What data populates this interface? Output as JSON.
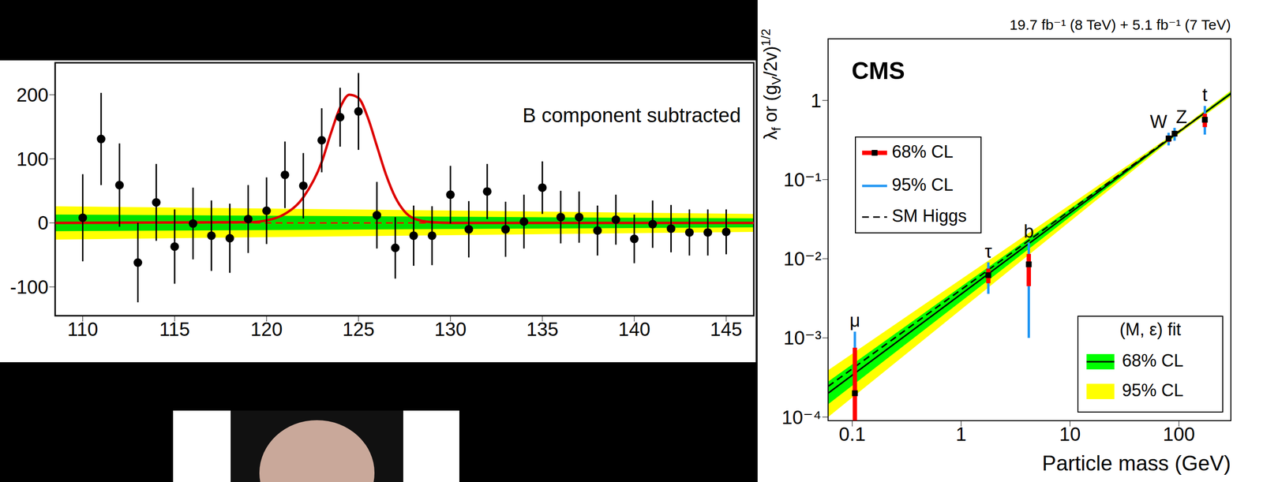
{
  "chart_data": [
    {
      "type": "scatter",
      "annotation": "B component subtracted",
      "xlim": [
        108.5,
        146.5
      ],
      "xticks": [
        110,
        115,
        120,
        125,
        130,
        135,
        140,
        145
      ],
      "ylim": [
        -145,
        250
      ],
      "yticks": [
        -100,
        0,
        100,
        200
      ],
      "color": "#000000",
      "x": [
        110,
        111,
        112,
        113,
        114,
        115,
        116,
        117,
        118,
        119,
        120,
        121,
        122,
        123,
        124,
        125,
        126,
        127,
        128,
        129,
        130,
        131,
        132,
        133,
        134,
        135,
        136,
        137,
        138,
        139,
        140,
        141,
        142,
        143,
        144,
        145
      ],
      "values": [
        8,
        131,
        59,
        -62,
        32,
        -37,
        -1,
        -20,
        -24,
        6,
        19,
        75,
        58,
        129,
        165,
        174,
        12,
        -39,
        -20,
        -20,
        44,
        -10,
        49,
        -10,
        2,
        55,
        9,
        9,
        -12,
        5,
        -25,
        -2,
        -9,
        -15,
        -15,
        -14
      ],
      "errors": [
        68,
        72,
        65,
        62,
        60,
        58,
        56,
        55,
        54,
        53,
        52,
        52,
        51,
        50,
        46,
        60,
        52,
        48,
        47,
        46,
        45,
        44,
        43,
        43,
        42,
        41,
        41,
        40,
        39,
        39,
        38,
        37,
        37,
        36,
        36,
        35
      ],
      "fit": {
        "color": "#dd0000",
        "x": [
          108.5,
          119,
          120,
          121,
          122,
          123,
          123.5,
          124,
          124.5,
          125,
          125.5,
          126,
          126.5,
          127,
          127.5,
          128,
          129,
          130,
          146.5
        ],
        "values": [
          0,
          1,
          4,
          14,
          40,
          95,
          140,
          180,
          200,
          195,
          165,
          120,
          75,
          40,
          18,
          7,
          1,
          0,
          0
        ]
      },
      "bands": [
        {
          "color": "#ffff00",
          "x": [
            108.5,
            146.5
          ],
          "lo": [
            -26,
            -14
          ],
          "hi": [
            26,
            14
          ]
        },
        {
          "color": "#00e000",
          "x": [
            108.5,
            146.5
          ],
          "lo": [
            -13,
            -7
          ],
          "hi": [
            13,
            7
          ]
        }
      ],
      "baseline": {
        "color": "#ff0000",
        "line_style": "dashed",
        "x": [
          108.5,
          146.5
        ],
        "values": [
          0,
          0
        ]
      }
    },
    {
      "type": "scatter",
      "title": "CMS",
      "subtitle": "19.7 fb⁻¹ (8 TeV) + 5.1 fb⁻¹ (7 TeV)",
      "xlabel": "Particle mass (GeV)",
      "ylabel": [
        "λ",
        "f",
        " or (g",
        "V",
        "/2v)",
        "1/2"
      ],
      "log": true,
      "xlim": [
        0.06,
        300
      ],
      "xticks": [
        0.1,
        1,
        10,
        100
      ],
      "ylim": [
        9e-05,
        6
      ],
      "yticks": [
        {
          "value": 0.0001,
          "label": "10⁻⁴"
        },
        {
          "value": 0.001,
          "label": "10⁻³"
        },
        {
          "value": 0.01,
          "label": "10⁻²"
        },
        {
          "value": 0.1,
          "label": "10⁻¹"
        },
        1
      ],
      "legend": "upper left",
      "points": [
        {
          "name": "μ",
          "x": 0.1057,
          "value": 0.0002,
          "intervals": {
            "68% CL": [
              5e-05,
              0.00075
            ],
            "95% CL": [
              5e-05,
              0.0012
            ]
          }
        },
        {
          "name": "τ",
          "x": 1.777,
          "value": 0.0062,
          "intervals": {
            "68% CL": [
              0.0049,
              0.0075
            ],
            "95% CL": [
              0.0036,
              0.009
            ]
          }
        },
        {
          "name": "b",
          "x": 4.18,
          "value": 0.0085,
          "intervals": {
            "68% CL": [
              0.0045,
              0.0115
            ],
            "95% CL": [
              0.001,
              0.016
            ]
          }
        },
        {
          "name": "W",
          "x": 80.4,
          "value": 0.33,
          "intervals": {
            "68% CL": [
              0.3,
              0.36
            ],
            "95% CL": [
              0.27,
              0.39
            ]
          }
        },
        {
          "name": "Z",
          "x": 91.2,
          "value": 0.38,
          "intervals": {
            "68% CL": [
              0.35,
              0.41
            ],
            "95% CL": [
              0.31,
              0.45
            ]
          }
        },
        {
          "name": "t",
          "x": 173,
          "value": 0.57,
          "intervals": {
            "68% CL": [
              0.46,
              0.68
            ],
            "95% CL": [
              0.37,
              0.85
            ]
          }
        }
      ],
      "series": [
        {
          "name": "68% CL",
          "color": "#ff0000"
        },
        {
          "name": "95% CL",
          "color": "#2196f3"
        },
        {
          "name": "SM Higgs",
          "color": "#000000",
          "line_style": "dashed",
          "x": [
            0.06,
            300
          ],
          "values": [
            0.000244,
            1.22
          ]
        }
      ],
      "fit": {
        "title": "(M, ε) fit",
        "color": "#000000",
        "x": [
          0.06,
          90,
          300
        ],
        "values": [
          0.0002,
          0.36,
          1.22
        ],
        "bands": [
          {
            "name": "68% CL",
            "color": "#00ff00",
            "lo": [
              0.000145,
              0.35,
              1.17
            ],
            "hi": [
              0.00028,
              0.37,
              1.28
            ]
          },
          {
            "name": "95% CL",
            "color": "#ffff00",
            "lo": [
              0.0001,
              0.34,
              1.12
            ],
            "hi": [
              0.00039,
              0.38,
              1.33
            ]
          }
        ]
      }
    }
  ]
}
